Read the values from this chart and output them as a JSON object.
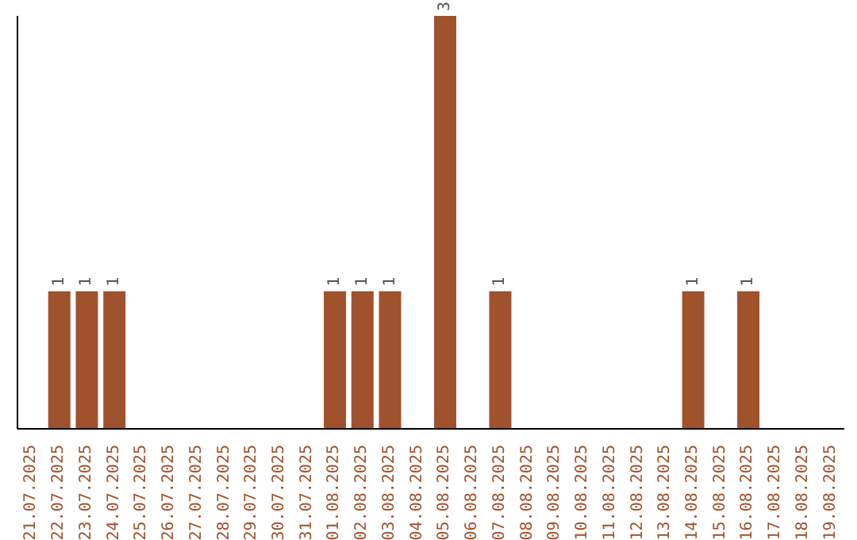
{
  "chart_data": {
    "type": "bar",
    "categories": [
      "21.07.2025",
      "22.07.2025",
      "23.07.2025",
      "24.07.2025",
      "25.07.2025",
      "26.07.2025",
      "27.07.2025",
      "28.07.2025",
      "29.07.2025",
      "30.07.2025",
      "31.07.2025",
      "01.08.2025",
      "02.08.2025",
      "03.08.2025",
      "04.08.2025",
      "05.08.2025",
      "06.08.2025",
      "07.08.2025",
      "08.08.2025",
      "09.08.2025",
      "10.08.2025",
      "11.08.2025",
      "12.08.2025",
      "13.08.2025",
      "14.08.2025",
      "15.08.2025",
      "16.08.2025",
      "17.08.2025",
      "18.08.2025",
      "19.08.2025"
    ],
    "values": [
      0,
      1,
      1,
      1,
      0,
      0,
      0,
      0,
      0,
      0,
      0,
      1,
      1,
      1,
      0,
      3,
      0,
      1,
      0,
      0,
      0,
      0,
      0,
      0,
      1,
      0,
      1,
      0,
      0,
      0
    ],
    "value_labels": [
      null,
      "1",
      "1",
      "1",
      null,
      null,
      null,
      null,
      null,
      null,
      null,
      "1",
      "1",
      "1",
      null,
      "3",
      null,
      "1",
      null,
      null,
      null,
      null,
      null,
      null,
      "1",
      null,
      "1",
      null,
      null,
      null
    ],
    "color": "#a0522d",
    "ylim": [
      0,
      3
    ],
    "tick_labels": "x",
    "grid": false,
    "legend": false
  }
}
